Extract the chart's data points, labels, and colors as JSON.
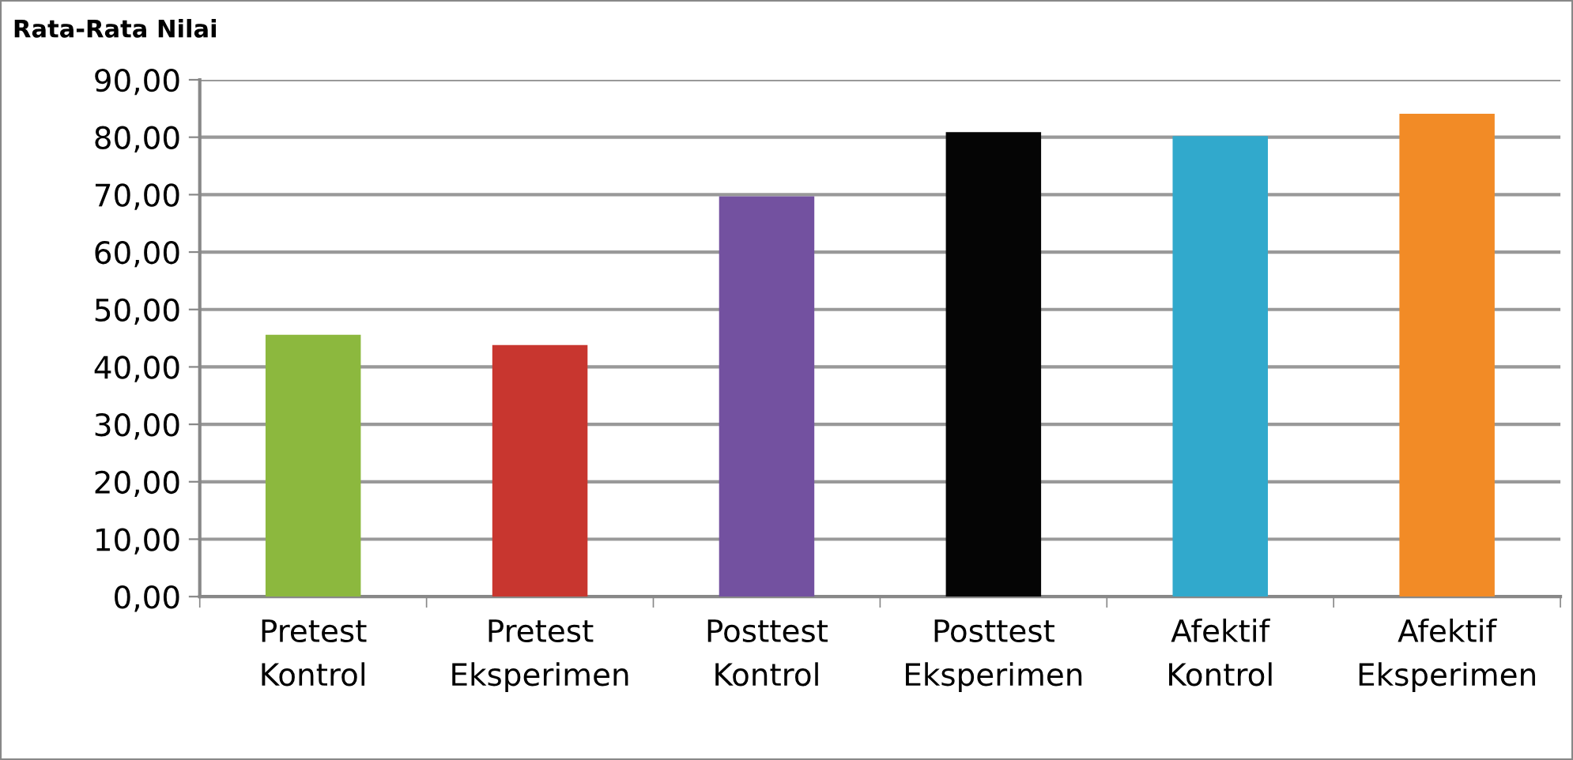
{
  "chart_data": {
    "type": "bar",
    "title": "Rata-Rata Nilai",
    "categories": [
      "Pretest\nKontrol",
      "Pretest\nEksperimen",
      "Posttest\nKontrol",
      "Posttest\nEksperimen",
      "Afektif\nKontrol",
      "Afektif\nEksperimen"
    ],
    "values": [
      45.6,
      43.8,
      69.7,
      80.9,
      80.2,
      84.1
    ],
    "colors": [
      "#8cb83e",
      "#c8362f",
      "#7351a0",
      "#050505",
      "#31a9cc",
      "#f28b26"
    ],
    "ylim": [
      0,
      90
    ],
    "yticks": [
      {
        "value": 0,
        "label": "0,00"
      },
      {
        "value": 10,
        "label": "10,00"
      },
      {
        "value": 20,
        "label": "20,00"
      },
      {
        "value": 30,
        "label": "30,00"
      },
      {
        "value": 40,
        "label": "40,00"
      },
      {
        "value": 50,
        "label": "50,00"
      },
      {
        "value": 60,
        "label": "60,00"
      },
      {
        "value": 70,
        "label": "70,00"
      },
      {
        "value": 80,
        "label": "80,00"
      },
      {
        "value": 90,
        "label": "90,00"
      }
    ],
    "grid": "y"
  }
}
